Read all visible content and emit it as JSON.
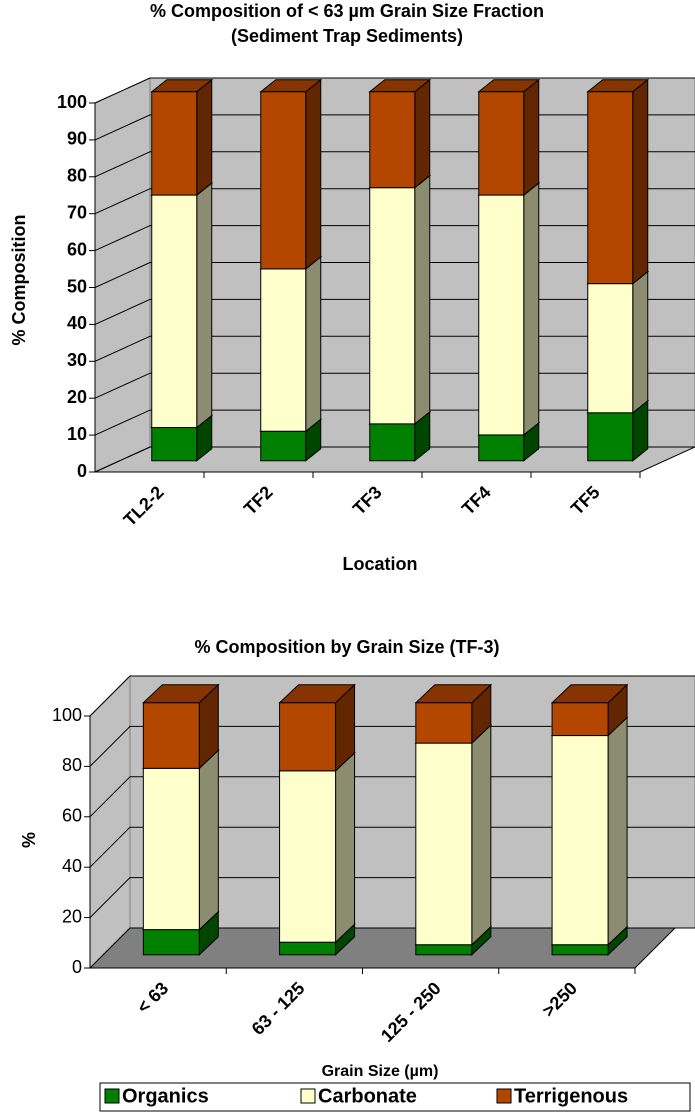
{
  "chart_data": [
    {
      "type": "bar3d-stacked",
      "title": "% Composition of  < 63 µm Grain Size Fraction",
      "subtitle": "(Sediment Trap Sediments)",
      "x_label": "Location",
      "y_label": "% Composition",
      "categories": [
        "TL2-2",
        "TF2",
        "TF3",
        "TF4",
        "TF5"
      ],
      "series": [
        {
          "name": "Organics",
          "color": "#008000",
          "values": [
            9,
            8,
            10,
            7,
            13
          ]
        },
        {
          "name": "Carbonate",
          "color": "#ffffcc",
          "values": [
            63,
            44,
            64,
            65,
            35
          ]
        },
        {
          "name": "Terrigenous",
          "color": "#b34700",
          "values": [
            28,
            48,
            26,
            28,
            52
          ]
        }
      ],
      "ylim": [
        0,
        100
      ],
      "yticks": [
        0,
        10,
        20,
        30,
        40,
        50,
        60,
        70,
        80,
        90,
        100
      ],
      "grid": true
    },
    {
      "type": "bar3d-stacked",
      "title": "% Composition by Grain Size (TF-3)",
      "x_label": "Grain Size (µm)",
      "y_label": "%",
      "categories": [
        "< 63",
        "63 - 125",
        "125 - 250",
        ">250"
      ],
      "series": [
        {
          "name": "Organics",
          "color": "#008000",
          "values": [
            10,
            5,
            4,
            4
          ]
        },
        {
          "name": "Carbonate",
          "color": "#ffffcc",
          "values": [
            64,
            68,
            80,
            83
          ]
        },
        {
          "name": "Terrigenous",
          "color": "#b34700",
          "values": [
            26,
            27,
            16,
            13
          ]
        }
      ],
      "ylim": [
        0,
        100
      ],
      "yticks": [
        0,
        20,
        40,
        60,
        80,
        100
      ],
      "grid": true,
      "legend": "bottom"
    }
  ]
}
